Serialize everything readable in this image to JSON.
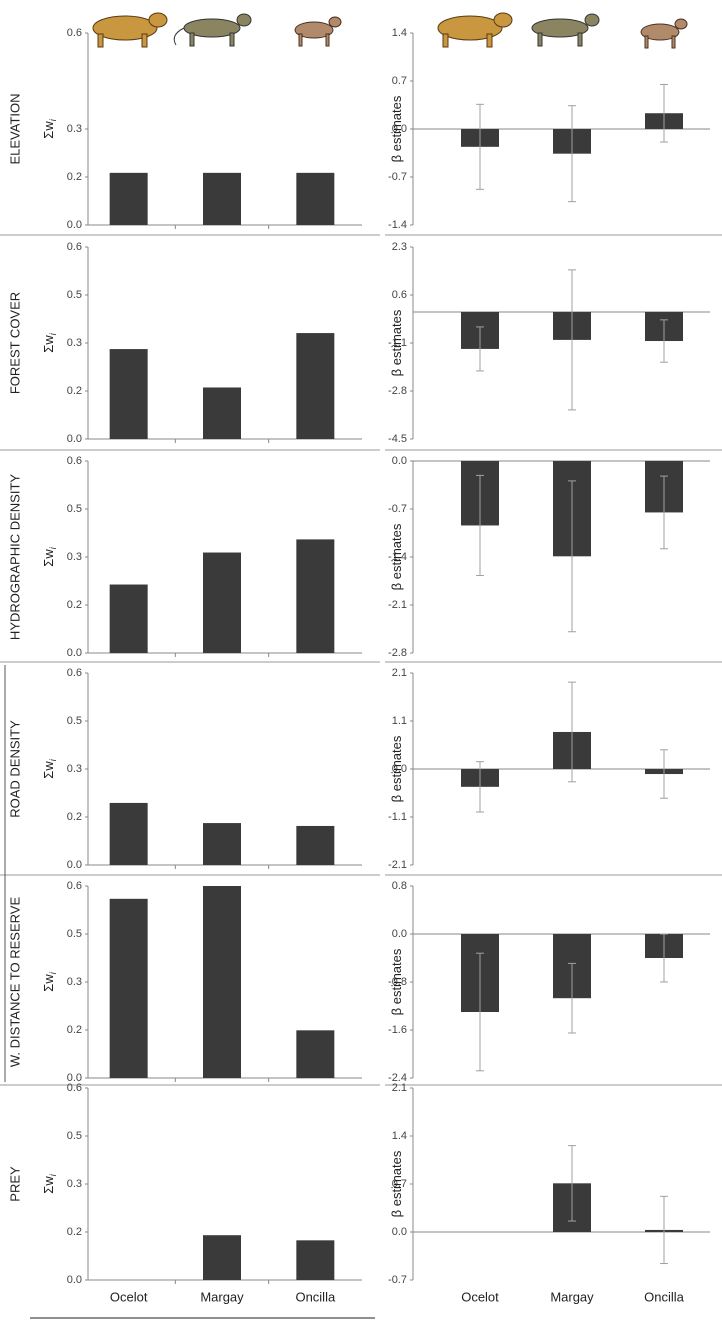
{
  "chart_data": [
    {
      "type": "bar",
      "title": "ELEVATION",
      "y_label": "Σw",
      "y_label_subscript": "i",
      "color": "#3a3a3a",
      "ylim": [
        0,
        0.6
      ],
      "yticks": [
        {
          "value": 0,
          "label": "0.0"
        },
        {
          "value": 0.15,
          "label": "0.2"
        },
        0.3,
        0.6
      ],
      "values": [
        0.163,
        0.163,
        0.163
      ]
    },
    {
      "type": "errorbar",
      "y_label": "β estimates",
      "color": "#3a3a3a",
      "error_color": "#a0a0a0",
      "ylim": [
        -1.4,
        1.4
      ],
      "yticks": [
        -1.4,
        -0.7,
        {
          "value": 0,
          "label": "0.0"
        },
        0.7,
        1.4
      ],
      "values": [
        -0.26,
        -0.36,
        0.23
      ],
      "errors": [
        0.62,
        0.7,
        0.42
      ]
    },
    {
      "type": "bar",
      "title": "FOREST COVER",
      "y_label": "Σw",
      "y_label_subscript": "i",
      "color": "#3a3a3a",
      "ylim": [
        0,
        0.6
      ],
      "yticks": [
        {
          "value": 0,
          "label": "0.0"
        },
        {
          "value": 0.15,
          "label": "0.2"
        },
        0.3,
        {
          "value": 0.45,
          "label": "0.5"
        },
        0.6
      ],
      "values": [
        0.281,
        0.161,
        0.331
      ]
    },
    {
      "type": "errorbar",
      "y_label": "β estimates",
      "color": "#3a3a3a",
      "error_color": "#a0a0a0",
      "ylim": [
        -4.5,
        2.3
      ],
      "yticks": [
        -4.5,
        -2.8,
        -1.1,
        0.6,
        2.3
      ],
      "values": [
        -1.31,
        -0.99,
        -1.03
      ],
      "errors": [
        0.78,
        2.48,
        0.75
      ]
    },
    {
      "type": "bar",
      "title": "HYDROGRAPHIC DENSITY",
      "y_label": "Σw",
      "y_label_subscript": "i",
      "color": "#3a3a3a",
      "ylim": [
        0,
        0.6
      ],
      "yticks": [
        {
          "value": 0,
          "label": "0.0"
        },
        {
          "value": 0.15,
          "label": "0.2"
        },
        0.3,
        {
          "value": 0.45,
          "label": "0.5"
        },
        0.6
      ],
      "values": [
        0.214,
        0.314,
        0.355
      ]
    },
    {
      "type": "errorbar",
      "y_label": "β estimates",
      "color": "#3a3a3a",
      "error_color": "#a0a0a0",
      "ylim": [
        -2.8,
        0
      ],
      "yticks": [
        -2.8,
        -2.1,
        -1.4,
        -0.7,
        {
          "value": 0,
          "label": "0.0"
        }
      ],
      "values": [
        -0.94,
        -1.39,
        -0.75
      ],
      "errors": [
        0.73,
        1.1,
        0.53
      ]
    },
    {
      "type": "bar",
      "title": "ROAD DENSITY",
      "y_label": "Σw",
      "y_label_subscript": "i",
      "color": "#3a3a3a",
      "ylim": [
        0,
        0.6
      ],
      "yticks": [
        {
          "value": 0,
          "label": "0.0"
        },
        {
          "value": 0.15,
          "label": "0.2"
        },
        0.3,
        {
          "value": 0.45,
          "label": "0.5"
        },
        0.6
      ],
      "values": [
        0.194,
        0.131,
        0.122
      ]
    },
    {
      "type": "errorbar",
      "y_label": "β estimates",
      "color": "#3a3a3a",
      "error_color": "#a0a0a0",
      "ylim": [
        -2.1,
        2.1
      ],
      "yticks": [
        -2.1,
        {
          "value": -1.05,
          "label": "-1.1"
        },
        {
          "value": 0,
          "label": "0.0"
        },
        {
          "value": 1.05,
          "label": "1.1"
        },
        2.1
      ],
      "values": [
        -0.39,
        0.81,
        -0.11
      ],
      "errors": [
        0.55,
        1.09,
        0.53
      ]
    },
    {
      "type": "bar",
      "title": "W. DISTANCE TO RESERVE",
      "y_label": "Σw",
      "y_label_subscript": "i",
      "color": "#3a3a3a",
      "ylim": [
        0,
        0.6
      ],
      "yticks": [
        {
          "value": 0,
          "label": "0.0"
        },
        {
          "value": 0.15,
          "label": "0.2"
        },
        0.3,
        {
          "value": 0.45,
          "label": "0.5"
        },
        0.6
      ],
      "values": [
        0.56,
        0.6,
        0.149
      ]
    },
    {
      "type": "errorbar",
      "y_label": "β estimates",
      "color": "#3a3a3a",
      "error_color": "#a0a0a0",
      "ylim": [
        -2.4,
        0.8
      ],
      "yticks": [
        -2.4,
        -1.6,
        -0.8,
        {
          "value": 0,
          "label": "0.0"
        },
        0.8
      ],
      "values": [
        -1.3,
        -1.07,
        -0.4
      ],
      "errors": [
        0.98,
        0.58,
        0.4
      ]
    },
    {
      "type": "bar",
      "title": "PREY",
      "y_label": "Σw",
      "y_label_subscript": "i",
      "color": "#3a3a3a",
      "ylim": [
        0,
        0.6
      ],
      "yticks": [
        {
          "value": 0,
          "label": "0.0"
        },
        {
          "value": 0.15,
          "label": "0.2"
        },
        0.3,
        {
          "value": 0.45,
          "label": "0.5"
        },
        0.6
      ],
      "categories": [
        "Ocelot",
        "Margay",
        "Oncilla"
      ],
      "values": [
        0,
        0.14,
        0.124
      ]
    },
    {
      "type": "errorbar",
      "y_label": "β estimates",
      "color": "#3a3a3a",
      "error_color": "#a0a0a0",
      "ylim": [
        -0.7,
        2.1
      ],
      "yticks": [
        -0.7,
        {
          "value": 0,
          "label": "0.0"
        },
        0.7,
        1.4,
        2.1
      ],
      "categories": [
        "Ocelot",
        "Margay",
        "Oncilla"
      ],
      "values": [
        0,
        0.71,
        0.03
      ],
      "errors": [
        null,
        0.55,
        0.49
      ]
    }
  ]
}
